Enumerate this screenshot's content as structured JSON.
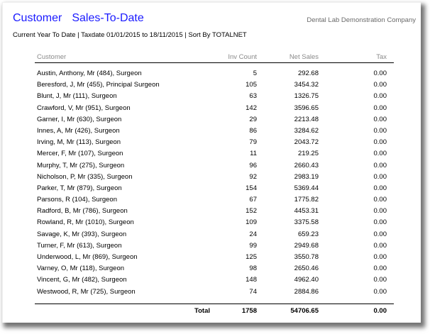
{
  "report": {
    "title_part1": "Customer",
    "title_part2": "Sales-To-Date",
    "company": "Dental Lab Demonstration Company",
    "subtitle": "Current Year To Date  | Taxdate 01/01/2015 to 18/11/2015  | Sort By TOTALNET"
  },
  "table": {
    "columns": {
      "customer": "Customer",
      "inv_count": "Inv Count",
      "net_sales": "Net Sales",
      "tax": "Tax"
    },
    "rows": [
      {
        "customer": "Austin, Anthony, Mr (484), Surgeon",
        "inv_count": "5",
        "net_sales": "292.68",
        "tax": "0.00"
      },
      {
        "customer": "Beresford, J, Mr (455), Principal Surgeon",
        "inv_count": "105",
        "net_sales": "3454.32",
        "tax": "0.00"
      },
      {
        "customer": "Blunt, J, Mr (111), Surgeon",
        "inv_count": "63",
        "net_sales": "1326.75",
        "tax": "0.00"
      },
      {
        "customer": "Crawford, V, Mr (951), Surgeon",
        "inv_count": "142",
        "net_sales": "3596.65",
        "tax": "0.00"
      },
      {
        "customer": "Garner, I, Mr (630), Surgeon",
        "inv_count": "29",
        "net_sales": "2213.48",
        "tax": "0.00"
      },
      {
        "customer": "Innes, A, Mr (426), Surgeon",
        "inv_count": "86",
        "net_sales": "3284.62",
        "tax": "0.00"
      },
      {
        "customer": "Irving, M, Mr (113), Surgeon",
        "inv_count": "79",
        "net_sales": "2043.72",
        "tax": "0.00"
      },
      {
        "customer": "Mercer, F, Mr (107), Surgeon",
        "inv_count": "11",
        "net_sales": "219.25",
        "tax": "0.00"
      },
      {
        "customer": "Murphy, T, Mr (275), Surgeon",
        "inv_count": "96",
        "net_sales": "2660.43",
        "tax": "0.00"
      },
      {
        "customer": "Nicholson, P, Mr (335), Surgeon",
        "inv_count": "92",
        "net_sales": "2983.19",
        "tax": "0.00"
      },
      {
        "customer": "Parker, T, Mr (879), Surgeon",
        "inv_count": "154",
        "net_sales": "5369.44",
        "tax": "0.00"
      },
      {
        "customer": "Parsons, R (104), Surgeon",
        "inv_count": "67",
        "net_sales": "1775.82",
        "tax": "0.00"
      },
      {
        "customer": "Radford, B, Mr (786), Surgeon",
        "inv_count": "152",
        "net_sales": "4453.31",
        "tax": "0.00"
      },
      {
        "customer": "Rowland, R, Mr (1010), Surgeon",
        "inv_count": "109",
        "net_sales": "3375.58",
        "tax": "0.00"
      },
      {
        "customer": "Savage, K, Mr (393), Surgeon",
        "inv_count": "24",
        "net_sales": "659.23",
        "tax": "0.00"
      },
      {
        "customer": "Turner, F, Mr (613), Surgeon",
        "inv_count": "99",
        "net_sales": "2949.68",
        "tax": "0.00"
      },
      {
        "customer": "Underwood, L, Mr (869), Surgeon",
        "inv_count": "125",
        "net_sales": "3550.78",
        "tax": "0.00"
      },
      {
        "customer": "Varney, O, Mr (118), Surgeon",
        "inv_count": "98",
        "net_sales": "2650.46",
        "tax": "0.00"
      },
      {
        "customer": "Vincent, G, Mr (482), Surgeon",
        "inv_count": "148",
        "net_sales": "4962.40",
        "tax": "0.00"
      },
      {
        "customer": "Westwood, R, Mr (725), Surgeon",
        "inv_count": "74",
        "net_sales": "2884.86",
        "tax": "0.00"
      }
    ],
    "total": {
      "label": "Total",
      "inv_count": "1758",
      "net_sales": "54706.65",
      "tax": "0.00"
    }
  },
  "colors": {
    "title": "#1a1aff",
    "company": "#6a6a6a",
    "header_text": "#8a8a8a"
  }
}
